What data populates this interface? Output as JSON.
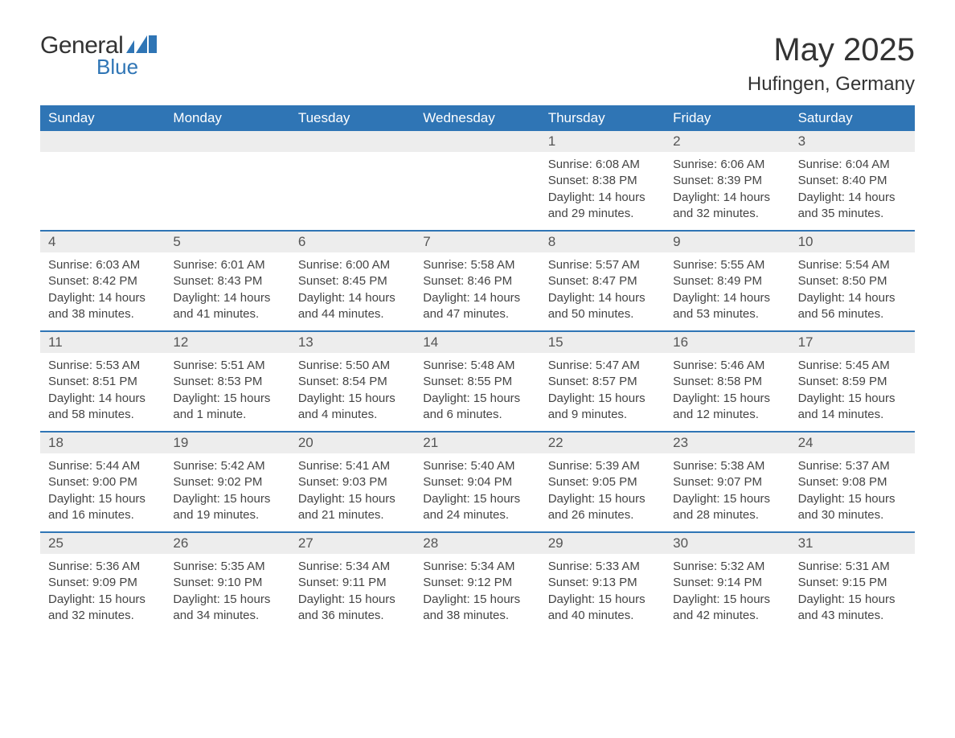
{
  "brand": {
    "word1": "General",
    "word2": "Blue",
    "word1_color": "#333333",
    "word2_color": "#2f75b5",
    "flag_color": "#2f75b5"
  },
  "title": {
    "month": "May 2025",
    "location": "Hufingen, Germany",
    "month_fontsize": 40,
    "location_fontsize": 24,
    "text_color": "#333333"
  },
  "calendar": {
    "header_bg": "#2f75b5",
    "header_fg": "#ffffff",
    "daynum_bg": "#ededed",
    "border_color": "#2f75b5",
    "background": "#ffffff",
    "text_color": "#444444",
    "weekdays": [
      "Sunday",
      "Monday",
      "Tuesday",
      "Wednesday",
      "Thursday",
      "Friday",
      "Saturday"
    ],
    "weeks": [
      [
        {
          "empty": true
        },
        {
          "empty": true
        },
        {
          "empty": true
        },
        {
          "empty": true
        },
        {
          "num": "1",
          "sunrise": "Sunrise: 6:08 AM",
          "sunset": "Sunset: 8:38 PM",
          "daylight": "Daylight: 14 hours and 29 minutes."
        },
        {
          "num": "2",
          "sunrise": "Sunrise: 6:06 AM",
          "sunset": "Sunset: 8:39 PM",
          "daylight": "Daylight: 14 hours and 32 minutes."
        },
        {
          "num": "3",
          "sunrise": "Sunrise: 6:04 AM",
          "sunset": "Sunset: 8:40 PM",
          "daylight": "Daylight: 14 hours and 35 minutes."
        }
      ],
      [
        {
          "num": "4",
          "sunrise": "Sunrise: 6:03 AM",
          "sunset": "Sunset: 8:42 PM",
          "daylight": "Daylight: 14 hours and 38 minutes."
        },
        {
          "num": "5",
          "sunrise": "Sunrise: 6:01 AM",
          "sunset": "Sunset: 8:43 PM",
          "daylight": "Daylight: 14 hours and 41 minutes."
        },
        {
          "num": "6",
          "sunrise": "Sunrise: 6:00 AM",
          "sunset": "Sunset: 8:45 PM",
          "daylight": "Daylight: 14 hours and 44 minutes."
        },
        {
          "num": "7",
          "sunrise": "Sunrise: 5:58 AM",
          "sunset": "Sunset: 8:46 PM",
          "daylight": "Daylight: 14 hours and 47 minutes."
        },
        {
          "num": "8",
          "sunrise": "Sunrise: 5:57 AM",
          "sunset": "Sunset: 8:47 PM",
          "daylight": "Daylight: 14 hours and 50 minutes."
        },
        {
          "num": "9",
          "sunrise": "Sunrise: 5:55 AM",
          "sunset": "Sunset: 8:49 PM",
          "daylight": "Daylight: 14 hours and 53 minutes."
        },
        {
          "num": "10",
          "sunrise": "Sunrise: 5:54 AM",
          "sunset": "Sunset: 8:50 PM",
          "daylight": "Daylight: 14 hours and 56 minutes."
        }
      ],
      [
        {
          "num": "11",
          "sunrise": "Sunrise: 5:53 AM",
          "sunset": "Sunset: 8:51 PM",
          "daylight": "Daylight: 14 hours and 58 minutes."
        },
        {
          "num": "12",
          "sunrise": "Sunrise: 5:51 AM",
          "sunset": "Sunset: 8:53 PM",
          "daylight": "Daylight: 15 hours and 1 minute."
        },
        {
          "num": "13",
          "sunrise": "Sunrise: 5:50 AM",
          "sunset": "Sunset: 8:54 PM",
          "daylight": "Daylight: 15 hours and 4 minutes."
        },
        {
          "num": "14",
          "sunrise": "Sunrise: 5:48 AM",
          "sunset": "Sunset: 8:55 PM",
          "daylight": "Daylight: 15 hours and 6 minutes."
        },
        {
          "num": "15",
          "sunrise": "Sunrise: 5:47 AM",
          "sunset": "Sunset: 8:57 PM",
          "daylight": "Daylight: 15 hours and 9 minutes."
        },
        {
          "num": "16",
          "sunrise": "Sunrise: 5:46 AM",
          "sunset": "Sunset: 8:58 PM",
          "daylight": "Daylight: 15 hours and 12 minutes."
        },
        {
          "num": "17",
          "sunrise": "Sunrise: 5:45 AM",
          "sunset": "Sunset: 8:59 PM",
          "daylight": "Daylight: 15 hours and 14 minutes."
        }
      ],
      [
        {
          "num": "18",
          "sunrise": "Sunrise: 5:44 AM",
          "sunset": "Sunset: 9:00 PM",
          "daylight": "Daylight: 15 hours and 16 minutes."
        },
        {
          "num": "19",
          "sunrise": "Sunrise: 5:42 AM",
          "sunset": "Sunset: 9:02 PM",
          "daylight": "Daylight: 15 hours and 19 minutes."
        },
        {
          "num": "20",
          "sunrise": "Sunrise: 5:41 AM",
          "sunset": "Sunset: 9:03 PM",
          "daylight": "Daylight: 15 hours and 21 minutes."
        },
        {
          "num": "21",
          "sunrise": "Sunrise: 5:40 AM",
          "sunset": "Sunset: 9:04 PM",
          "daylight": "Daylight: 15 hours and 24 minutes."
        },
        {
          "num": "22",
          "sunrise": "Sunrise: 5:39 AM",
          "sunset": "Sunset: 9:05 PM",
          "daylight": "Daylight: 15 hours and 26 minutes."
        },
        {
          "num": "23",
          "sunrise": "Sunrise: 5:38 AM",
          "sunset": "Sunset: 9:07 PM",
          "daylight": "Daylight: 15 hours and 28 minutes."
        },
        {
          "num": "24",
          "sunrise": "Sunrise: 5:37 AM",
          "sunset": "Sunset: 9:08 PM",
          "daylight": "Daylight: 15 hours and 30 minutes."
        }
      ],
      [
        {
          "num": "25",
          "sunrise": "Sunrise: 5:36 AM",
          "sunset": "Sunset: 9:09 PM",
          "daylight": "Daylight: 15 hours and 32 minutes."
        },
        {
          "num": "26",
          "sunrise": "Sunrise: 5:35 AM",
          "sunset": "Sunset: 9:10 PM",
          "daylight": "Daylight: 15 hours and 34 minutes."
        },
        {
          "num": "27",
          "sunrise": "Sunrise: 5:34 AM",
          "sunset": "Sunset: 9:11 PM",
          "daylight": "Daylight: 15 hours and 36 minutes."
        },
        {
          "num": "28",
          "sunrise": "Sunrise: 5:34 AM",
          "sunset": "Sunset: 9:12 PM",
          "daylight": "Daylight: 15 hours and 38 minutes."
        },
        {
          "num": "29",
          "sunrise": "Sunrise: 5:33 AM",
          "sunset": "Sunset: 9:13 PM",
          "daylight": "Daylight: 15 hours and 40 minutes."
        },
        {
          "num": "30",
          "sunrise": "Sunrise: 5:32 AM",
          "sunset": "Sunset: 9:14 PM",
          "daylight": "Daylight: 15 hours and 42 minutes."
        },
        {
          "num": "31",
          "sunrise": "Sunrise: 5:31 AM",
          "sunset": "Sunset: 9:15 PM",
          "daylight": "Daylight: 15 hours and 43 minutes."
        }
      ]
    ]
  }
}
